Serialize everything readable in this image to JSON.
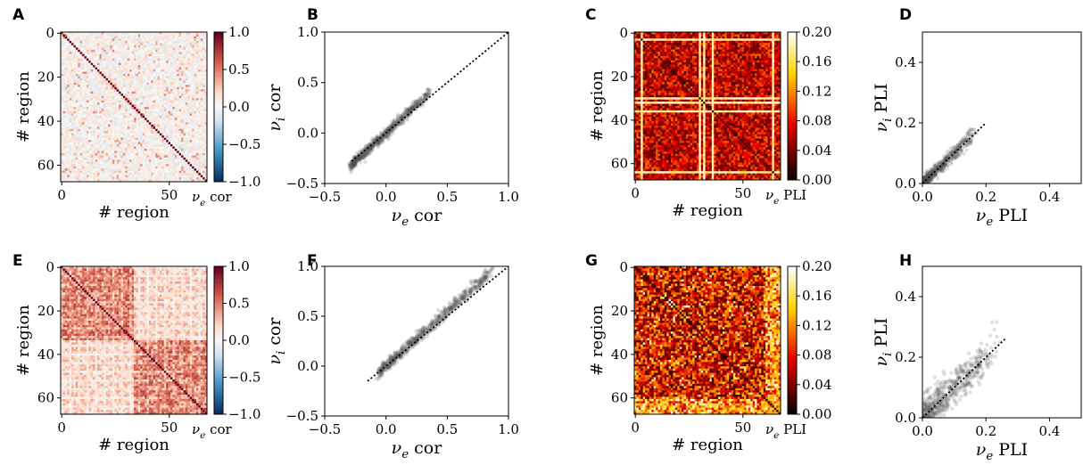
{
  "chart_data": [
    {
      "panel": "A",
      "type": "heatmap",
      "variant": "corr",
      "seed": 3,
      "xlabel": "# region",
      "ylabel": "# region",
      "xticks": [
        0,
        50
      ],
      "yticks": [
        0,
        20,
        40,
        60
      ],
      "n": 68,
      "vmin": -1.0,
      "vmax": 1.0,
      "colormap": "RdBu_r",
      "colorbar": {
        "label": "ν_e cor",
        "ticks": [
          "1.0",
          "0.5",
          "0.0",
          "−0.5",
          "−1.0"
        ],
        "tick_values": [
          1.0,
          0.5,
          0.0,
          -0.5,
          -1.0
        ]
      }
    },
    {
      "panel": "B",
      "type": "scatter",
      "seed": 5,
      "xlabel": "ν_e cor",
      "ylabel": "ν_i cor",
      "xlim": [
        -0.5,
        1.0
      ],
      "ylim": [
        -0.5,
        1.0
      ],
      "xticks": [
        "−0.5",
        "0.0",
        "0.5",
        "1.0"
      ],
      "xtick_values": [
        -0.5,
        0.0,
        0.5,
        1.0
      ],
      "yticks": [
        "−0.5",
        "0.0",
        "0.5",
        "1.0"
      ],
      "ytick_values": [
        -0.5,
        0.0,
        0.5,
        1.0
      ],
      "identity_line": [
        -0.28,
        1.0
      ],
      "points_range": [
        -0.28,
        0.35
      ],
      "slope": 1.12,
      "spread": 0.025
    },
    {
      "panel": "C",
      "type": "heatmap",
      "variant": "pli",
      "seed": 7,
      "xlabel": "# region",
      "ylabel": "# region",
      "xticks": [
        0,
        50
      ],
      "yticks": [
        0,
        20,
        40,
        60
      ],
      "n": 68,
      "vmin": 0.0,
      "vmax": 0.2,
      "colormap": "hot",
      "bright_rows": [
        3,
        30,
        32,
        36,
        64
      ],
      "colorbar": {
        "label": "ν_e PLI",
        "ticks": [
          "0.20",
          "0.16",
          "0.12",
          "0.08",
          "0.04",
          "0.00"
        ],
        "tick_values": [
          0.2,
          0.16,
          0.12,
          0.08,
          0.04,
          0.0
        ]
      }
    },
    {
      "panel": "D",
      "type": "scatter",
      "seed": 9,
      "xlabel": "ν_e PLI",
      "ylabel": "ν_i PLI",
      "xlim": [
        0.0,
        0.5
      ],
      "ylim": [
        0.0,
        0.5
      ],
      "xticks": [
        "0.0",
        "0.2",
        "0.4"
      ],
      "xtick_values": [
        0.0,
        0.2,
        0.4
      ],
      "yticks": [
        "0.0",
        "0.2",
        "0.4"
      ],
      "ytick_values": [
        0.0,
        0.2,
        0.4
      ],
      "identity_line": [
        0.0,
        0.2
      ],
      "points_range": [
        0.0,
        0.16
      ],
      "slope": 1.0,
      "spread": 0.012
    },
    {
      "panel": "E",
      "type": "heatmap",
      "variant": "corr_block",
      "seed": 11,
      "xlabel": "# region",
      "ylabel": "# region",
      "xticks": [
        0,
        50
      ],
      "yticks": [
        0,
        20,
        40,
        60
      ],
      "n": 68,
      "vmin": -1.0,
      "vmax": 1.0,
      "colormap": "RdBu_r",
      "colorbar": {
        "label": "ν_e cor",
        "ticks": [
          "1.0",
          "0.5",
          "0.0",
          "−0.5",
          "−1.0"
        ],
        "tick_values": [
          1.0,
          0.5,
          0.0,
          -0.5,
          -1.0
        ]
      }
    },
    {
      "panel": "F",
      "type": "scatter",
      "seed": 13,
      "xlabel": "ν_e cor",
      "ylabel": "ν_i cor",
      "xlim": [
        -0.5,
        1.0
      ],
      "ylim": [
        -0.5,
        1.0
      ],
      "xticks": [
        "−0.5",
        "0.0",
        "0.5",
        "1.0"
      ],
      "xtick_values": [
        -0.5,
        0.0,
        0.5,
        1.0
      ],
      "yticks": [
        "−0.5",
        "0.0",
        "0.5",
        "1.0"
      ],
      "ytick_values": [
        -0.5,
        0.0,
        0.5,
        1.0
      ],
      "identity_line": [
        -0.15,
        1.0
      ],
      "points_range": [
        -0.05,
        0.85
      ],
      "slope": 1.1,
      "spread": 0.03
    },
    {
      "panel": "G",
      "type": "heatmap",
      "variant": "pli_speckle",
      "seed": 17,
      "xlabel": "# region",
      "ylabel": "# region",
      "xticks": [
        0,
        50
      ],
      "yticks": [
        0,
        20,
        40,
        60
      ],
      "n": 68,
      "vmin": 0.0,
      "vmax": 0.2,
      "colormap": "hot",
      "colorbar": {
        "label": "ν_e PLI",
        "ticks": [
          "0.20",
          "0.16",
          "0.12",
          "0.08",
          "0.04",
          "0.00"
        ],
        "tick_values": [
          0.2,
          0.16,
          0.12,
          0.08,
          0.04,
          0.0
        ]
      }
    },
    {
      "panel": "H",
      "type": "scatter",
      "seed": 19,
      "xlabel": "ν_e PLI",
      "ylabel": "ν_i PLI",
      "xlim": [
        0.0,
        0.5
      ],
      "ylim": [
        0.0,
        0.5
      ],
      "xticks": [
        "0.0",
        "0.2",
        "0.4"
      ],
      "xtick_values": [
        0.0,
        0.2,
        0.4
      ],
      "yticks": [
        "0.0",
        "0.2",
        "0.4"
      ],
      "ytick_values": [
        0.0,
        0.2,
        0.4
      ],
      "identity_line": [
        0.0,
        0.26
      ],
      "points_range": [
        0.0,
        0.22
      ],
      "slope": 1.0,
      "spread": 0.03
    }
  ]
}
